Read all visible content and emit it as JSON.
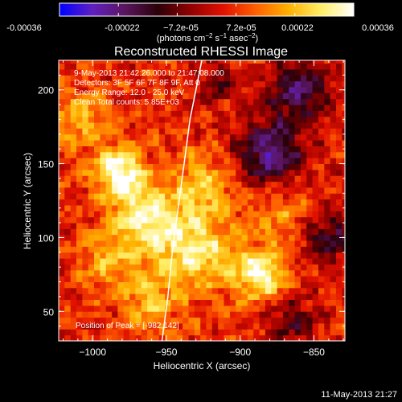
{
  "chart_data": {
    "type": "heatmap",
    "title": "Reconstructed RHESSI Image",
    "xlabel": "Heliocentric X (arcsec)",
    "ylabel": "Heliocentric Y (arcsec)",
    "xlim": [
      -1023,
      -829
    ],
    "ylim": [
      30,
      220
    ],
    "x_ticks": [
      -1000,
      -950,
      -900,
      -850
    ],
    "x_tick_labels": [
      "−1000",
      "−950",
      "−900",
      "−850"
    ],
    "y_ticks": [
      50,
      100,
      150,
      200
    ],
    "y_tick_labels": [
      "50",
      "100",
      "150",
      "200"
    ],
    "colorbar": {
      "range": [
        -0.00036,
        0.00036
      ],
      "tick_labels": [
        "-0.00036",
        "-0.00022",
        "−7.2e-05",
        "7.2e-05",
        "0.00022",
        "0.00036"
      ],
      "unit_label_main": "(photons cm",
      "unit_label_exp1": "−2",
      "unit_label_mid": " s",
      "unit_label_exp2": "−1",
      "unit_label_end": " asec",
      "unit_label_exp3": "−2",
      "unit_label_close": ")",
      "colors": [
        "#0000ff",
        "#6020c0",
        "#5a1560",
        "#2a0008",
        "#900000",
        "#e01000",
        "#ff6000",
        "#ffb000",
        "#ffee66",
        "#ffffff"
      ]
    },
    "annotations": [
      "9-May-2013 21:42:26.000 to 21:47:08.000",
      "Detectors: 3F 5F 6F 7F 8F 9F, Att 0",
      "Energy Range: 12.0 - 25.0 keV",
      "Clean    Total counts: 5.85E+03"
    ],
    "peak_label": "Position of Peak = [-982,142]",
    "peak": [
      -982,
      142
    ],
    "grid": false,
    "limb_curve": [
      [
        -953,
        30
      ],
      [
        -949,
        60
      ],
      [
        -946,
        90
      ],
      [
        -942,
        120
      ],
      [
        -938,
        150
      ],
      [
        -934,
        180
      ],
      [
        -930,
        200
      ],
      [
        -926,
        220
      ]
    ],
    "hotspots": [
      {
        "x": -982,
        "y": 145,
        "amp": 1.0,
        "sigma": 11
      },
      {
        "x": -970,
        "y": 120,
        "amp": 0.55,
        "sigma": 14
      },
      {
        "x": -950,
        "y": 100,
        "amp": 0.6,
        "sigma": 18
      },
      {
        "x": -885,
        "y": 75,
        "amp": 0.85,
        "sigma": 12
      },
      {
        "x": -920,
        "y": 88,
        "amp": 0.5,
        "sigma": 18
      },
      {
        "x": -1010,
        "y": 180,
        "amp": 0.45,
        "sigma": 14
      },
      {
        "x": -925,
        "y": 135,
        "amp": 0.5,
        "sigma": 16
      },
      {
        "x": -960,
        "y": 55,
        "amp": 0.45,
        "sigma": 14
      },
      {
        "x": -990,
        "y": 85,
        "amp": 0.4,
        "sigma": 14
      },
      {
        "x": -870,
        "y": 115,
        "amp": 0.35,
        "sigma": 14
      }
    ],
    "coldspots": [
      {
        "x": -880,
        "y": 158,
        "amp": 0.9,
        "sigma": 16
      },
      {
        "x": -860,
        "y": 200,
        "amp": 0.8,
        "sigma": 14
      },
      {
        "x": -840,
        "y": 100,
        "amp": 0.6,
        "sigma": 14
      },
      {
        "x": -865,
        "y": 45,
        "amp": 0.5,
        "sigma": 12
      },
      {
        "x": -915,
        "y": 205,
        "amp": 0.4,
        "sigma": 10
      }
    ]
  },
  "footer": {
    "timestamp": "11-May-2013 21:27"
  }
}
